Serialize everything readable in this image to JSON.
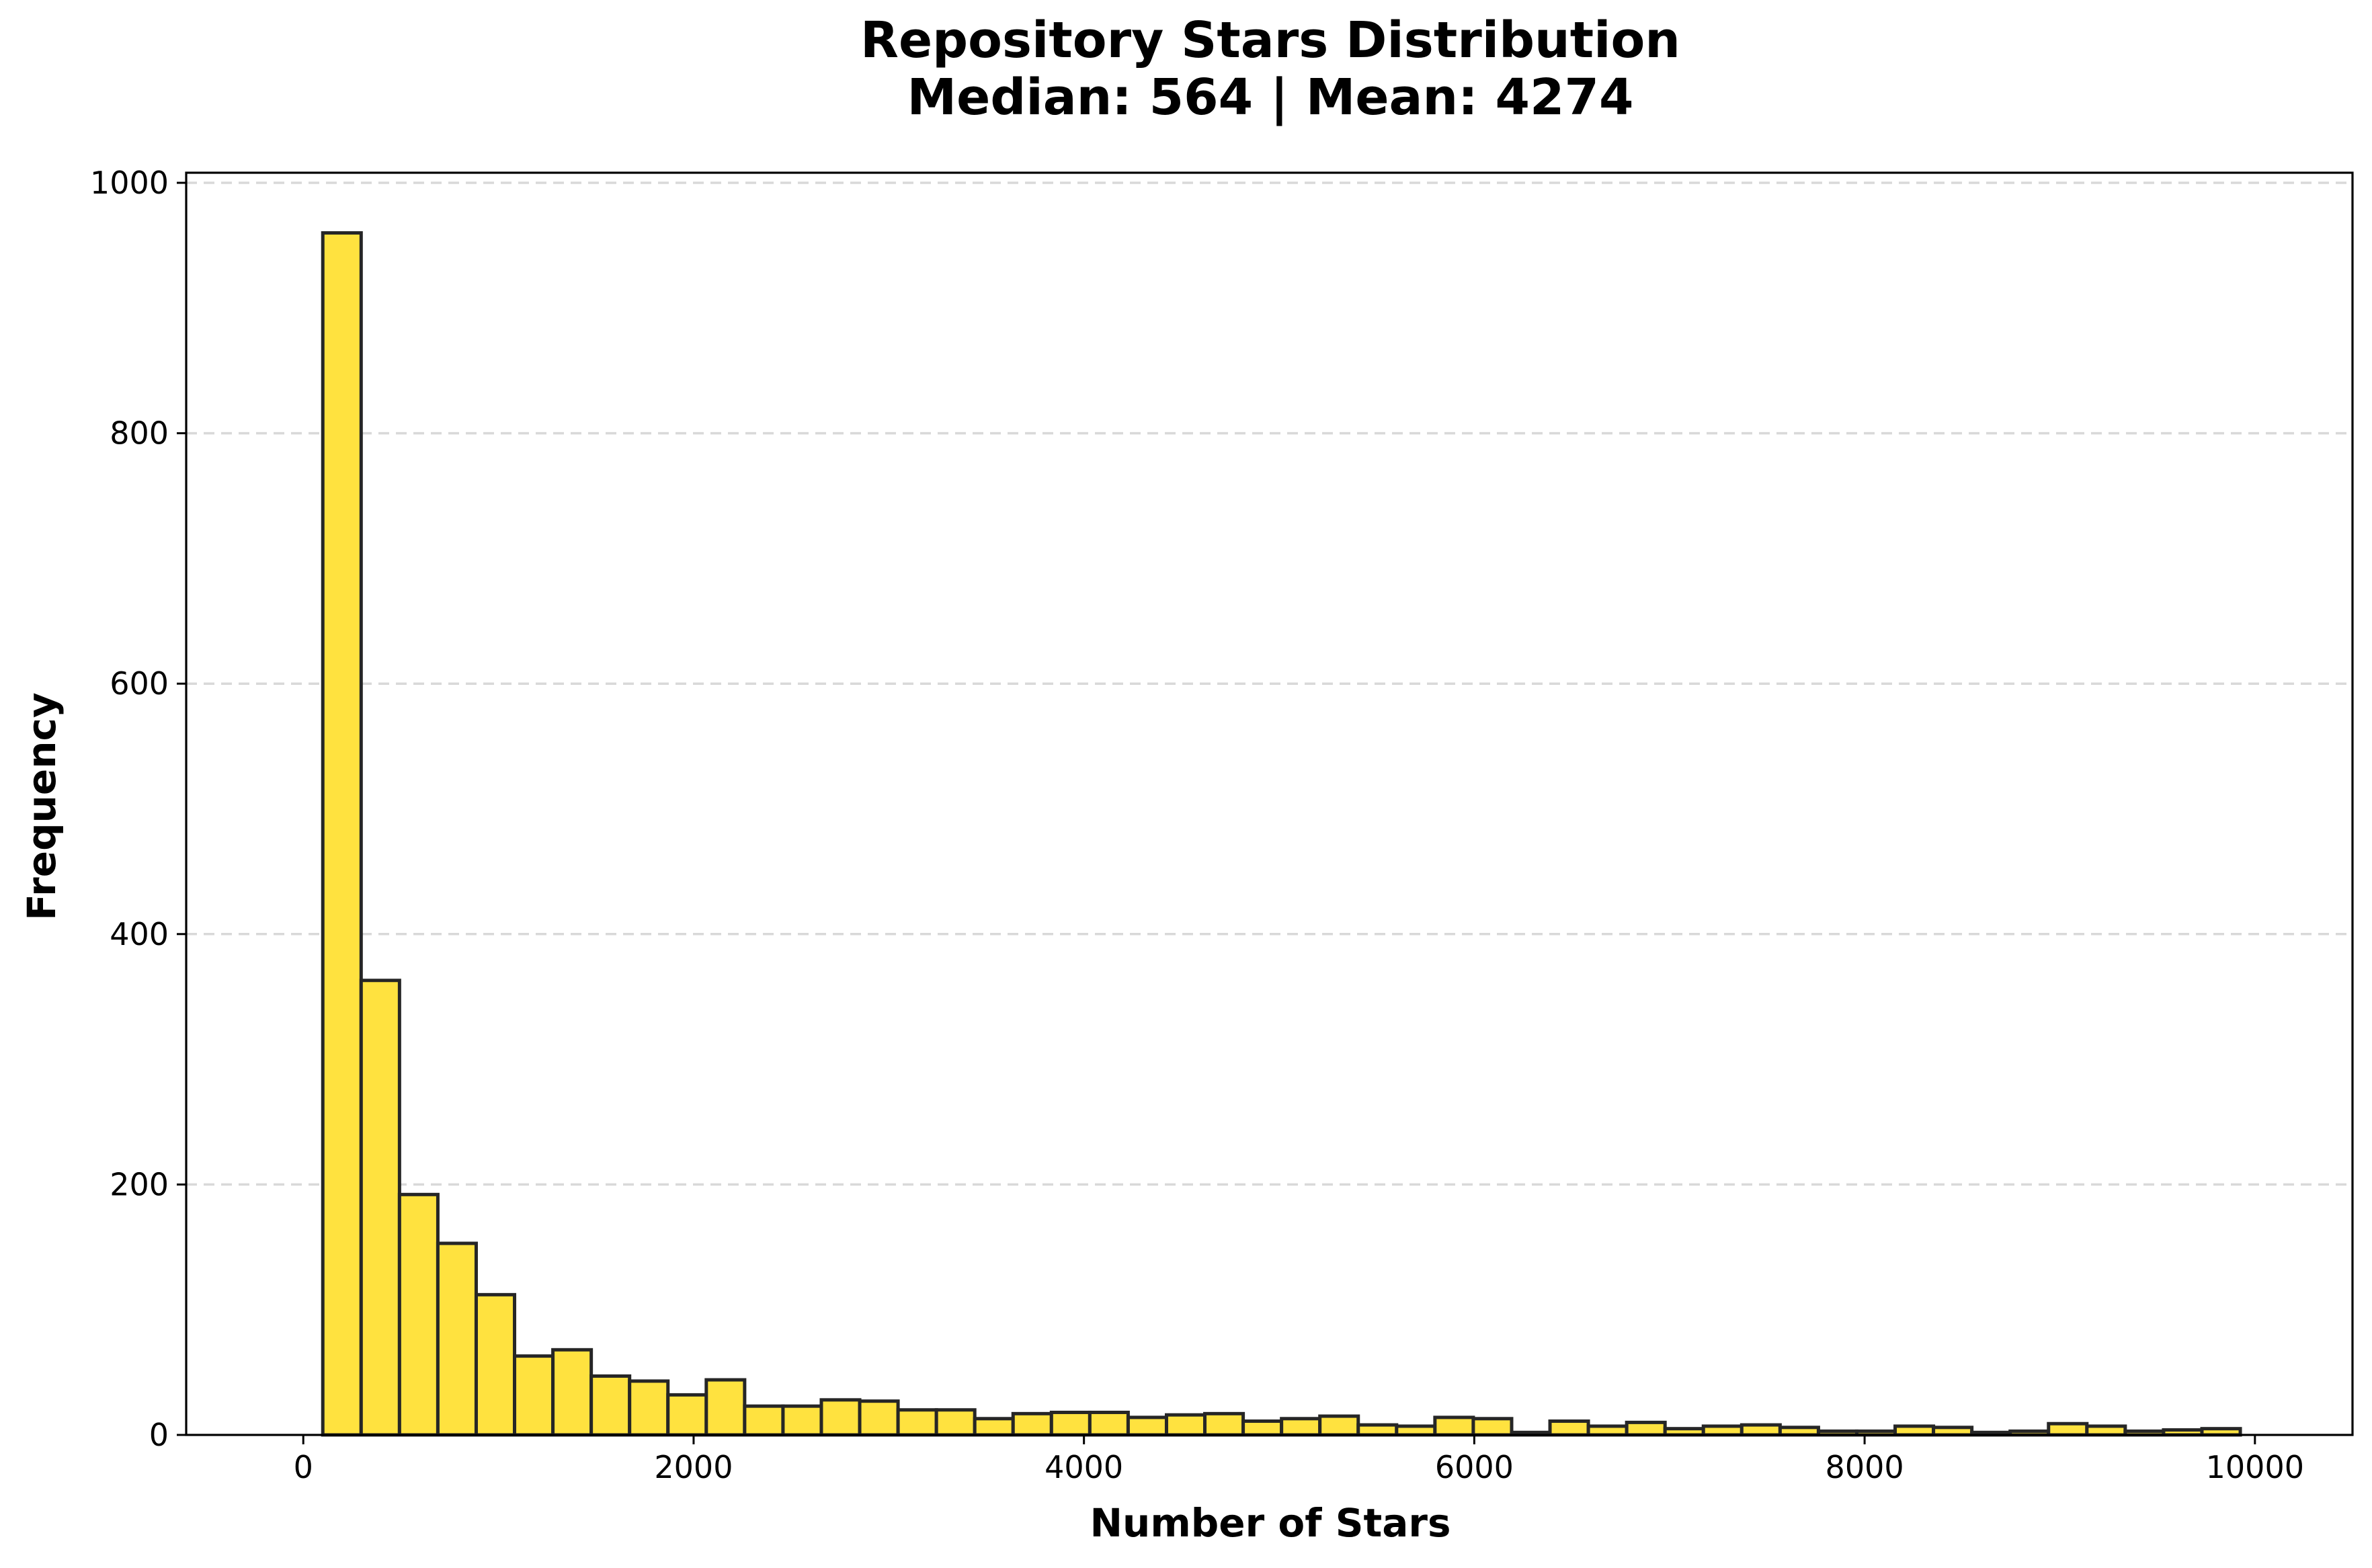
{
  "colors": {
    "bar_fill": "#ffe23f",
    "bar_edge": "#262626",
    "grid": "#d9d9d9"
  },
  "chart_data": {
    "type": "bar",
    "title": "Repository Stars Distribution",
    "subtitle": "Median: 564 | Mean: 4274",
    "xlabel": "Number of Stars",
    "ylabel": "Frequency",
    "xlim": [
      -600,
      10500
    ],
    "ylim": [
      0,
      1000
    ],
    "xticks": [
      0,
      2000,
      4000,
      6000,
      8000,
      10000
    ],
    "yticks": [
      0,
      200,
      400,
      600,
      800,
      1000
    ],
    "grid": "y-dashed",
    "bin_start": 100,
    "bin_width": 196.5,
    "values": [
      960,
      363,
      192,
      153,
      112,
      63,
      68,
      47,
      43,
      32,
      44,
      23,
      23,
      28,
      27,
      20,
      20,
      13,
      17,
      18,
      18,
      14,
      16,
      17,
      11,
      13,
      15,
      8,
      7,
      14,
      13,
      2,
      11,
      7,
      10,
      5,
      7,
      8,
      6,
      3,
      3,
      7,
      6,
      2,
      3,
      9,
      7,
      3,
      4,
      5
    ]
  }
}
